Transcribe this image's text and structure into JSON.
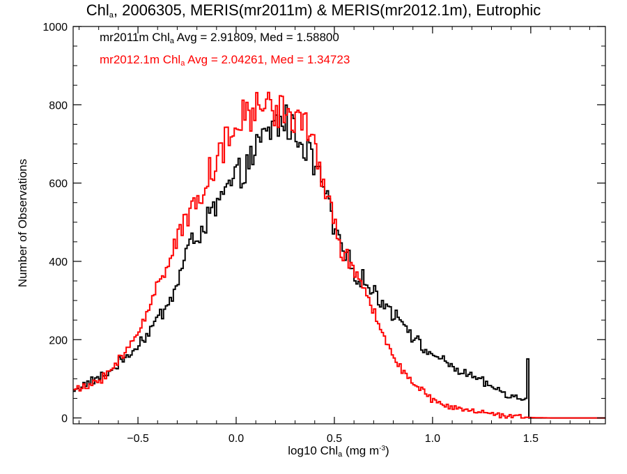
{
  "chart_data": {
    "type": "histogram-step",
    "title": {
      "pre": "Chl",
      "sub": "a",
      "post": ", 2006305, MERIS(mr2011m) & MERIS(mr2012.1m), Eutrophic"
    },
    "xlabel": {
      "pre": "log10 Chl",
      "sub": "a",
      "mid": " (mg m",
      "sup": "-3",
      "post": ")"
    },
    "ylabel": "Number of Observations",
    "xlim": [
      -0.83,
      1.88
    ],
    "ylim": [
      -15,
      1000
    ],
    "x_ticks": [
      -0.5,
      0.0,
      0.5,
      1.0,
      1.5
    ],
    "x_tick_labels": [
      "−0.5",
      "0.0",
      "0.5",
      "1.0",
      "1.5"
    ],
    "y_ticks": [
      0,
      200,
      400,
      600,
      800,
      1000
    ],
    "y_tick_labels": [
      "0",
      "200",
      "400",
      "600",
      "800",
      "1000"
    ],
    "bin_width": 0.01,
    "annotations": [
      {
        "pre": "mr2011m Chl",
        "sub": "a",
        "post": " Avg = 2.91809, Med = 1.58800",
        "color": "#000000"
      },
      {
        "pre": "mr2012.1m Chl",
        "sub": "a",
        "post": " Avg = 2.04261, Med = 1.34723",
        "color": "#ff0000"
      }
    ],
    "series": [
      {
        "name": "mr2011m",
        "color": "#000000",
        "knots": [
          [
            -0.83,
            70
          ],
          [
            -0.75,
            90
          ],
          [
            -0.65,
            115
          ],
          [
            -0.55,
            160
          ],
          [
            -0.45,
            215
          ],
          [
            -0.35,
            290
          ],
          [
            -0.3,
            340
          ],
          [
            -0.25,
            430
          ],
          [
            -0.2,
            465
          ],
          [
            -0.15,
            500
          ],
          [
            -0.1,
            540
          ],
          [
            -0.05,
            580
          ],
          [
            0.0,
            610
          ],
          [
            0.05,
            640
          ],
          [
            0.1,
            680
          ],
          [
            0.15,
            720
          ],
          [
            0.2,
            750
          ],
          [
            0.25,
            760
          ],
          [
            0.3,
            730
          ],
          [
            0.35,
            700
          ],
          [
            0.4,
            640
          ],
          [
            0.45,
            590
          ],
          [
            0.5,
            480
          ],
          [
            0.55,
            420
          ],
          [
            0.6,
            375
          ],
          [
            0.65,
            350
          ],
          [
            0.7,
            320
          ],
          [
            0.75,
            295
          ],
          [
            0.8,
            270
          ],
          [
            0.85,
            250
          ],
          [
            0.9,
            210
          ],
          [
            0.95,
            175
          ],
          [
            1.0,
            165
          ],
          [
            1.05,
            145
          ],
          [
            1.1,
            130
          ],
          [
            1.2,
            105
          ],
          [
            1.3,
            80
          ],
          [
            1.4,
            55
          ],
          [
            1.47,
            45
          ],
          [
            1.48,
            45
          ],
          [
            1.485,
            160
          ],
          [
            1.49,
            160
          ],
          [
            1.495,
            5
          ],
          [
            1.5,
            0
          ],
          [
            1.88,
            0
          ]
        ]
      },
      {
        "name": "mr2012.1m",
        "color": "#ff0000",
        "knots": [
          [
            -0.83,
            70
          ],
          [
            -0.75,
            80
          ],
          [
            -0.65,
            115
          ],
          [
            -0.55,
            175
          ],
          [
            -0.45,
            270
          ],
          [
            -0.4,
            340
          ],
          [
            -0.35,
            400
          ],
          [
            -0.3,
            460
          ],
          [
            -0.25,
            505
          ],
          [
            -0.2,
            560
          ],
          [
            -0.15,
            610
          ],
          [
            -0.1,
            660
          ],
          [
            -0.05,
            700
          ],
          [
            0.0,
            740
          ],
          [
            0.05,
            770
          ],
          [
            0.1,
            790
          ],
          [
            0.15,
            800
          ],
          [
            0.2,
            790
          ],
          [
            0.25,
            780
          ],
          [
            0.3,
            770
          ],
          [
            0.35,
            740
          ],
          [
            0.4,
            690
          ],
          [
            0.45,
            600
          ],
          [
            0.5,
            490
          ],
          [
            0.55,
            420
          ],
          [
            0.6,
            375
          ],
          [
            0.65,
            320
          ],
          [
            0.7,
            270
          ],
          [
            0.75,
            210
          ],
          [
            0.8,
            165
          ],
          [
            0.85,
            120
          ],
          [
            0.9,
            90
          ],
          [
            0.95,
            65
          ],
          [
            1.0,
            45
          ],
          [
            1.05,
            35
          ],
          [
            1.1,
            25
          ],
          [
            1.2,
            15
          ],
          [
            1.3,
            8
          ],
          [
            1.4,
            4
          ],
          [
            1.5,
            1
          ],
          [
            1.6,
            0
          ],
          [
            1.88,
            0
          ]
        ]
      }
    ]
  }
}
